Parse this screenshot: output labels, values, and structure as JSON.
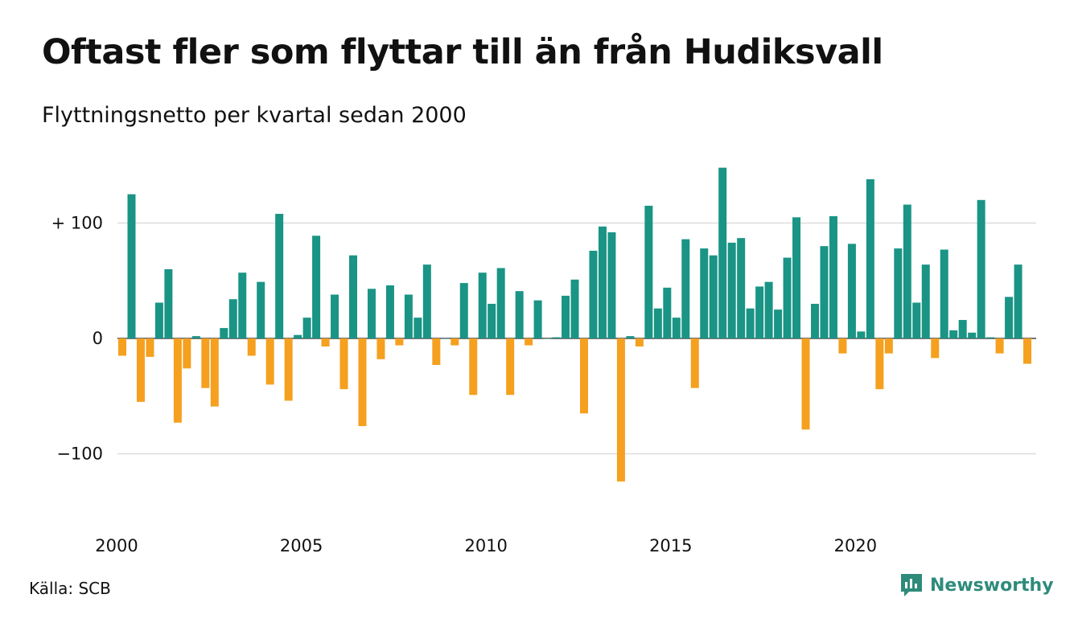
{
  "title": "Oftast fler som flyttar till än från Hudiksvall",
  "subtitle": "Flyttningsnetto per kvartal sedan 2000",
  "source": "Källa: SCB",
  "brand": "Newsworthy",
  "colors": {
    "positive": "#1a9485",
    "negative": "#f5a01f",
    "grid": "#dddddd",
    "brand": "#2e8b7a"
  },
  "chart_data": {
    "type": "bar",
    "y_ticks": [
      {
        "value": 100,
        "label": "+ 100"
      },
      {
        "value": 0,
        "label": "0"
      },
      {
        "value": -100,
        "label": "−100"
      }
    ],
    "x_ticks": [
      "2000",
      "2005",
      "2010",
      "2015",
      "2020"
    ],
    "ylim": [
      -130,
      150
    ],
    "grid": true,
    "start": "2000 Q1",
    "frequency": "quarterly",
    "values": [
      -15,
      125,
      -55,
      -16,
      31,
      60,
      -73,
      -26,
      2,
      -43,
      -59,
      9,
      34,
      57,
      -15,
      49,
      -40,
      108,
      -54,
      3,
      18,
      89,
      -7,
      38,
      -44,
      72,
      -76,
      43,
      -18,
      46,
      -6,
      38,
      18,
      64,
      -23,
      0,
      -6,
      48,
      -49,
      57,
      30,
      61,
      -49,
      41,
      -6,
      33,
      0,
      1,
      37,
      51,
      -65,
      76,
      97,
      92,
      -124,
      2,
      -7,
      115,
      26,
      44,
      18,
      86,
      -43,
      78,
      72,
      148,
      83,
      87,
      26,
      45,
      49,
      25,
      70,
      105,
      -79,
      30,
      80,
      106,
      -13,
      82,
      6,
      138,
      -44,
      -13,
      78,
      116,
      31,
      64,
      -17,
      77,
      7,
      16,
      5,
      120,
      1,
      -13,
      36,
      64,
      -22
    ]
  }
}
